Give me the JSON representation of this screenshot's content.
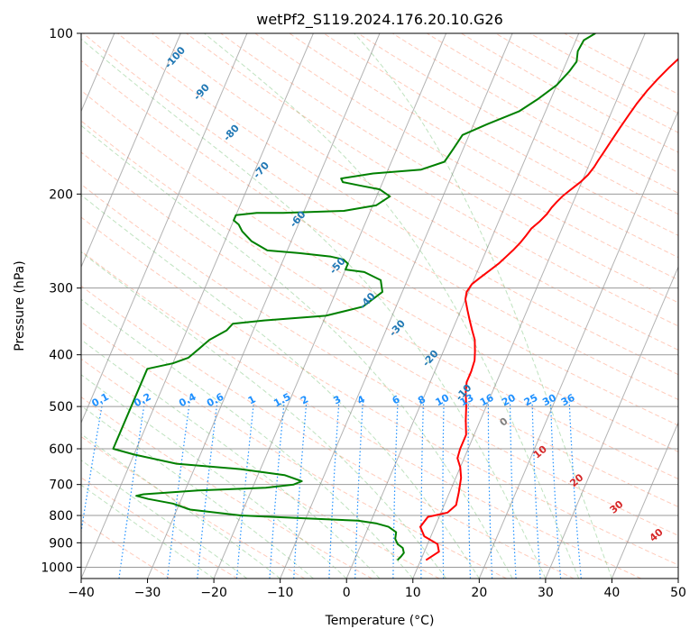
{
  "chart_data": {
    "type": "line",
    "title": "wetPf2_S119.2024.176.20.10.G26",
    "xlabel": "Temperature (°C)",
    "ylabel": "Pressure (hPa)",
    "xlim": [
      -40,
      50
    ],
    "ylim": [
      1050,
      100
    ],
    "y_scale": "log",
    "grid": true,
    "x_ticks": [
      -40,
      -30,
      -20,
      -10,
      0,
      10,
      20,
      30,
      40,
      50
    ],
    "y_ticks": [
      100,
      200,
      300,
      400,
      500,
      600,
      700,
      800,
      900,
      1000
    ],
    "series": [
      {
        "name": "",
        "color": "#ff0000",
        "points": [
          [
            10.8,
            970
          ],
          [
            12.2,
            935
          ],
          [
            11.5,
            905
          ],
          [
            9.0,
            875
          ],
          [
            7.8,
            840
          ],
          [
            8.3,
            805
          ],
          [
            11.0,
            790
          ],
          [
            11.8,
            765
          ],
          [
            11.4,
            725
          ],
          [
            10.8,
            680
          ],
          [
            10.0,
            650
          ],
          [
            9.0,
            625
          ],
          [
            8.8,
            600
          ],
          [
            8.8,
            565
          ],
          [
            7.8,
            530
          ],
          [
            7.0,
            500
          ],
          [
            6.0,
            470
          ],
          [
            5.5,
            450
          ],
          [
            5.5,
            430
          ],
          [
            5.3,
            410
          ],
          [
            4.8,
            395
          ],
          [
            4.0,
            375
          ],
          [
            3.0,
            360
          ],
          [
            2.0,
            345
          ],
          [
            1.0,
            330
          ],
          [
            0.0,
            315
          ],
          [
            -0.3,
            305
          ],
          [
            0.0,
            295
          ],
          [
            0.8,
            287
          ],
          [
            1.8,
            278
          ],
          [
            2.7,
            270
          ],
          [
            3.4,
            262
          ],
          [
            4.0,
            255
          ],
          [
            4.6,
            247
          ],
          [
            5.0,
            240
          ],
          [
            5.4,
            232
          ],
          [
            6.2,
            225
          ],
          [
            6.8,
            218
          ],
          [
            7.1,
            212
          ],
          [
            7.5,
            207
          ],
          [
            8.0,
            202
          ],
          [
            8.7,
            197
          ],
          [
            9.8,
            190
          ],
          [
            10.5,
            184
          ],
          [
            10.9,
            178
          ],
          [
            11.1,
            173
          ],
          [
            11.4,
            167
          ],
          [
            11.8,
            159
          ],
          [
            12.3,
            150
          ],
          [
            12.8,
            142
          ],
          [
            13.3,
            135
          ],
          [
            14.0,
            128
          ],
          [
            14.8,
            122
          ],
          [
            15.8,
            116
          ],
          [
            17.0,
            110
          ],
          [
            18.2,
            105
          ],
          [
            19.3,
            100
          ]
        ]
      },
      {
        "name": "",
        "color": "#008000",
        "points": [
          [
            6.5,
            970
          ],
          [
            6.8,
            955
          ],
          [
            7.0,
            940
          ],
          [
            6.5,
            920
          ],
          [
            5.5,
            905
          ],
          [
            4.8,
            885
          ],
          [
            4.5,
            860
          ],
          [
            3.0,
            840
          ],
          [
            1.0,
            828
          ],
          [
            -2.0,
            818
          ],
          [
            -10.0,
            810
          ],
          [
            -20.0,
            800
          ],
          [
            -28.0,
            780
          ],
          [
            -31.0,
            760
          ],
          [
            -35.0,
            745
          ],
          [
            -37.0,
            735
          ],
          [
            -36.0,
            730
          ],
          [
            -28.0,
            718
          ],
          [
            -18.0,
            710
          ],
          [
            -14.0,
            700
          ],
          [
            -13.0,
            690
          ],
          [
            -16.0,
            672
          ],
          [
            -23.0,
            655
          ],
          [
            -33.0,
            640
          ],
          [
            -40.0,
            615
          ],
          [
            -43.5,
            600
          ],
          [
            -43.5,
            425
          ],
          [
            -40.0,
            415
          ],
          [
            -38.0,
            405
          ],
          [
            -37.0,
            390
          ],
          [
            -36.0,
            375
          ],
          [
            -34.0,
            360
          ],
          [
            -33.5,
            350
          ],
          [
            -29.0,
            345
          ],
          [
            -20.0,
            338
          ],
          [
            -15.0,
            325
          ],
          [
            -13.0,
            305
          ],
          [
            -14.0,
            290
          ],
          [
            -17.0,
            280
          ],
          [
            -20.0,
            277
          ],
          [
            -20.0,
            270
          ],
          [
            -21.0,
            265
          ],
          [
            -23.0,
            262
          ],
          [
            -28.0,
            258
          ],
          [
            -33.0,
            255
          ],
          [
            -36.0,
            245
          ],
          [
            -38.0,
            235
          ],
          [
            -39.0,
            228
          ],
          [
            -40.0,
            224
          ],
          [
            -40.0,
            219
          ],
          [
            -37.0,
            217
          ],
          [
            -33.0,
            217
          ],
          [
            -24.0,
            215
          ],
          [
            -19.5,
            210
          ],
          [
            -18.0,
            202
          ],
          [
            -20.0,
            196
          ],
          [
            -23.0,
            193
          ],
          [
            -26.0,
            190
          ],
          [
            -26.5,
            187
          ],
          [
            -22.0,
            183
          ],
          [
            -15.0,
            180
          ],
          [
            -12.0,
            174
          ],
          [
            -11.5,
            165
          ],
          [
            -11.0,
            155
          ],
          [
            -8.0,
            148
          ],
          [
            -4.0,
            140
          ],
          [
            -2.0,
            133
          ],
          [
            0.0,
            125
          ],
          [
            1.0,
            118
          ],
          [
            1.5,
            113
          ],
          [
            1.0,
            108
          ],
          [
            1.2,
            103
          ],
          [
            2.5,
            100
          ]
        ]
      }
    ],
    "mixing_ratio_lines": [
      0.1,
      0.2,
      0.4,
      0.6,
      1,
      1.5,
      2,
      3,
      4,
      6,
      8,
      10,
      13,
      16,
      20,
      25,
      30,
      36
    ],
    "mixing_ratio_labels": [
      "0.1",
      "0.2",
      "0.4",
      "0.6",
      "1",
      "1.5",
      "2",
      "3",
      "4",
      "6",
      "8",
      "10",
      "13",
      "16",
      "20",
      "25",
      "30",
      "36"
    ],
    "dry_adiabat_labels": [
      {
        "text": "-100",
        "x": -25.5,
        "p": 112
      },
      {
        "text": "-90",
        "x": -21.5,
        "p": 130
      },
      {
        "text": "-80",
        "x": -17.0,
        "p": 155
      },
      {
        "text": "-70",
        "x": -12.5,
        "p": 182
      },
      {
        "text": "-60",
        "x": -7.0,
        "p": 225
      },
      {
        "text": "-50",
        "x": -1.0,
        "p": 275
      },
      {
        "text": "-40",
        "x": 3.5,
        "p": 320
      },
      {
        "text": "-30",
        "x": 8.0,
        "p": 360
      },
      {
        "text": "-20",
        "x": 13.0,
        "p": 410
      },
      {
        "text": "-10",
        "x": 18.0,
        "p": 475
      }
    ],
    "moist_adiabat_labels": [
      {
        "text": "0",
        "x": 24.0,
        "p": 540,
        "color": "#808080"
      },
      {
        "text": "10",
        "x": 29.5,
        "p": 615,
        "color": "#d62728"
      },
      {
        "text": "20",
        "x": 35.0,
        "p": 695,
        "color": "#d62728"
      },
      {
        "text": "30",
        "x": 41.0,
        "p": 780,
        "color": "#d62728"
      },
      {
        "text": "40",
        "x": 47.0,
        "p": 880,
        "color": "#d62728"
      }
    ]
  }
}
